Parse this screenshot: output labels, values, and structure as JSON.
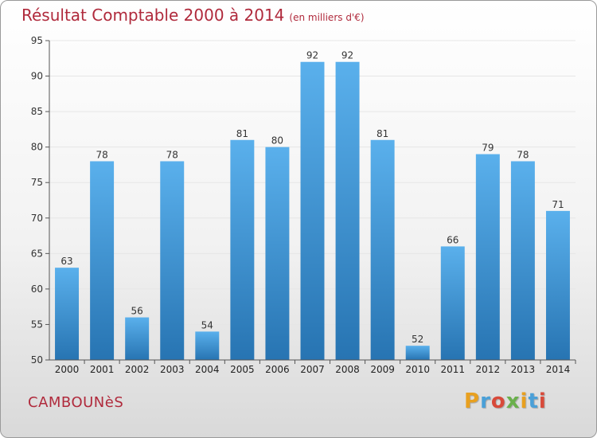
{
  "colors": {
    "title": "#b02a3c",
    "bar_top": "#5ab0ec",
    "bar_bottom": "#2774b2",
    "grid": "#e6e6e6",
    "axis": "#555555"
  },
  "header": {
    "title": "Résultat Comptable 2000 à 2014",
    "subtitle": "(en milliers d'€)"
  },
  "footer": {
    "commune": "CAMBOUNèS",
    "brand": "Proxiti",
    "brand_colors": [
      "#e8a020",
      "#4aa0d8",
      "#d84a3a",
      "#6ab04c",
      "#e8a020",
      "#4aa0d8",
      "#d84a3a"
    ]
  },
  "chart_data": {
    "type": "bar",
    "title": "Résultat Comptable 2000 à 2014",
    "unit": "(en milliers d'€)",
    "xlabel": "",
    "ylabel": "",
    "categories": [
      "2000",
      "2001",
      "2002",
      "2003",
      "2004",
      "2005",
      "2006",
      "2007",
      "2008",
      "2009",
      "2010",
      "2011",
      "2012",
      "2013",
      "2014"
    ],
    "values": [
      63,
      78,
      56,
      78,
      54,
      81,
      80,
      92,
      92,
      81,
      52,
      66,
      79,
      78,
      71
    ],
    "ylim": [
      50,
      95
    ],
    "yticks": [
      50,
      55,
      60,
      65,
      70,
      75,
      80,
      85,
      90,
      95
    ],
    "grid": true
  }
}
